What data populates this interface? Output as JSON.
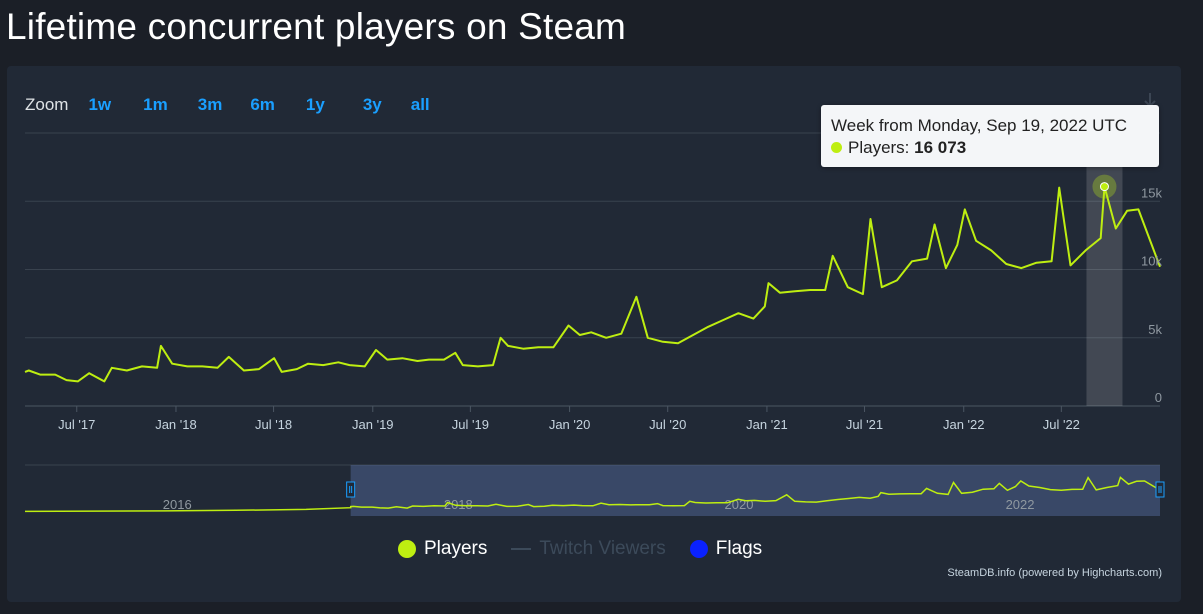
{
  "page": {
    "title": "Lifetime concurrent players on Steam"
  },
  "zoom": {
    "label": "Zoom",
    "buttons": [
      "1w",
      "1m",
      "3m",
      "6m",
      "1y",
      "3y",
      "all"
    ]
  },
  "tooltip": {
    "header": "Week from Monday, Sep 19, 2022 UTC",
    "series_label": "Players:",
    "value": "16 073"
  },
  "legend": [
    {
      "label": "Players",
      "color": "#beee11",
      "kind": "dot",
      "active": true
    },
    {
      "label": "Twitch Viewers",
      "color": "#3c4a5a",
      "kind": "line",
      "active": false
    },
    {
      "label": "Flags",
      "color": "#0a21ff",
      "kind": "dot",
      "active": true
    }
  ],
  "credits": "SteamDB.info (powered by Highcharts.com)",
  "colors": {
    "series": "#beee11",
    "grid": "#39424e",
    "background": "#212936",
    "accent": "#1a9fff"
  },
  "chart_data": {
    "type": "line",
    "title": "Lifetime concurrent players on Steam",
    "series_name": "Players",
    "y_ticks": [
      0,
      5000,
      10000,
      15000
    ],
    "y_tick_labels": [
      "0",
      "5k",
      "10k",
      "15k"
    ],
    "ylim": [
      0,
      20000
    ],
    "x_tick_labels": [
      "Jul '17",
      "Jan '18",
      "Jul '18",
      "Jan '19",
      "Jul '19",
      "Jan '20",
      "Jul '20",
      "Jan '21",
      "Jul '21",
      "Jan '22",
      "Jul '22"
    ],
    "x_ticks": [
      "2017-07-01",
      "2018-01-01",
      "2018-07-01",
      "2019-01-01",
      "2019-07-01",
      "2020-01-01",
      "2020-07-01",
      "2021-01-01",
      "2021-07-01",
      "2022-01-01",
      "2022-07-01"
    ],
    "x_range": [
      "2017-03-27",
      "2022-12-31"
    ],
    "highlight": {
      "x": "2022-09-19",
      "y": 16073
    },
    "points": [
      [
        "2017-03-27",
        2500
      ],
      [
        "2017-04-03",
        2600
      ],
      [
        "2017-04-24",
        2300
      ],
      [
        "2017-05-22",
        2300
      ],
      [
        "2017-06-12",
        1900
      ],
      [
        "2017-07-03",
        1800
      ],
      [
        "2017-07-24",
        2400
      ],
      [
        "2017-08-21",
        1800
      ],
      [
        "2017-09-04",
        2800
      ],
      [
        "2017-10-02",
        2600
      ],
      [
        "2017-10-30",
        2900
      ],
      [
        "2017-11-27",
        2800
      ],
      [
        "2017-12-04",
        4400
      ],
      [
        "2017-12-25",
        3100
      ],
      [
        "2018-01-22",
        2900
      ],
      [
        "2018-02-19",
        2900
      ],
      [
        "2018-03-19",
        2800
      ],
      [
        "2018-04-09",
        3600
      ],
      [
        "2018-05-07",
        2600
      ],
      [
        "2018-06-04",
        2700
      ],
      [
        "2018-07-02",
        3500
      ],
      [
        "2018-07-16",
        2500
      ],
      [
        "2018-08-13",
        2700
      ],
      [
        "2018-09-03",
        3100
      ],
      [
        "2018-10-01",
        3000
      ],
      [
        "2018-10-29",
        3200
      ],
      [
        "2018-11-19",
        3000
      ],
      [
        "2018-12-17",
        2900
      ],
      [
        "2019-01-07",
        4100
      ],
      [
        "2019-01-28",
        3400
      ],
      [
        "2019-02-25",
        3500
      ],
      [
        "2019-03-25",
        3300
      ],
      [
        "2019-04-15",
        3400
      ],
      [
        "2019-05-13",
        3400
      ],
      [
        "2019-06-03",
        3900
      ],
      [
        "2019-06-17",
        3000
      ],
      [
        "2019-07-15",
        2900
      ],
      [
        "2019-08-12",
        3000
      ],
      [
        "2019-08-26",
        5000
      ],
      [
        "2019-09-09",
        4400
      ],
      [
        "2019-10-07",
        4200
      ],
      [
        "2019-11-04",
        4300
      ],
      [
        "2019-12-02",
        4300
      ],
      [
        "2019-12-30",
        5900
      ],
      [
        "2020-01-20",
        5200
      ],
      [
        "2020-02-10",
        5400
      ],
      [
        "2020-03-09",
        5000
      ],
      [
        "2020-04-06",
        5300
      ],
      [
        "2020-05-04",
        8000
      ],
      [
        "2020-05-25",
        5000
      ],
      [
        "2020-06-22",
        4700
      ],
      [
        "2020-07-20",
        4600
      ],
      [
        "2020-08-17",
        5200
      ],
      [
        "2020-09-14",
        5800
      ],
      [
        "2020-10-12",
        6300
      ],
      [
        "2020-11-09",
        6800
      ],
      [
        "2020-12-07",
        6400
      ],
      [
        "2020-12-28",
        7300
      ],
      [
        "2021-01-04",
        9000
      ],
      [
        "2021-01-25",
        8300
      ],
      [
        "2021-02-22",
        8400
      ],
      [
        "2021-03-22",
        8500
      ],
      [
        "2021-04-19",
        8500
      ],
      [
        "2021-05-03",
        11000
      ],
      [
        "2021-05-31",
        8700
      ],
      [
        "2021-06-28",
        8200
      ],
      [
        "2021-07-12",
        13700
      ],
      [
        "2021-08-02",
        8700
      ],
      [
        "2021-08-30",
        9200
      ],
      [
        "2021-09-27",
        10600
      ],
      [
        "2021-10-25",
        10800
      ],
      [
        "2021-11-08",
        13300
      ],
      [
        "2021-11-29",
        10100
      ],
      [
        "2021-12-20",
        11800
      ],
      [
        "2022-01-03",
        14400
      ],
      [
        "2022-01-24",
        12100
      ],
      [
        "2022-02-21",
        11400
      ],
      [
        "2022-03-21",
        10400
      ],
      [
        "2022-04-18",
        10100
      ],
      [
        "2022-05-16",
        10500
      ],
      [
        "2022-06-13",
        10600
      ],
      [
        "2022-06-27",
        16000
      ],
      [
        "2022-07-18",
        10300
      ],
      [
        "2022-08-15",
        11400
      ],
      [
        "2022-09-12",
        12300
      ],
      [
        "2022-09-19",
        16073
      ],
      [
        "2022-10-10",
        13000
      ],
      [
        "2022-10-31",
        14300
      ],
      [
        "2022-11-21",
        14400
      ],
      [
        "2022-12-31",
        10200
      ]
    ],
    "navigator": {
      "x_tick_labels": [
        "2016",
        "2018",
        "2020",
        "2022"
      ],
      "x_ticks": [
        "2016-01-01",
        "2018-01-01",
        "2020-01-01",
        "2022-01-01"
      ],
      "x_range": [
        "2014-12-01",
        "2022-12-31"
      ],
      "selected_range": [
        "2017-03-27",
        "2022-12-31"
      ],
      "early_points": [
        [
          "2014-12-01",
          300
        ],
        [
          "2015-06-01",
          400
        ],
        [
          "2015-12-01",
          500
        ],
        [
          "2016-06-01",
          800
        ],
        [
          "2016-12-01",
          1200
        ],
        [
          "2017-03-27",
          2000
        ]
      ]
    }
  }
}
